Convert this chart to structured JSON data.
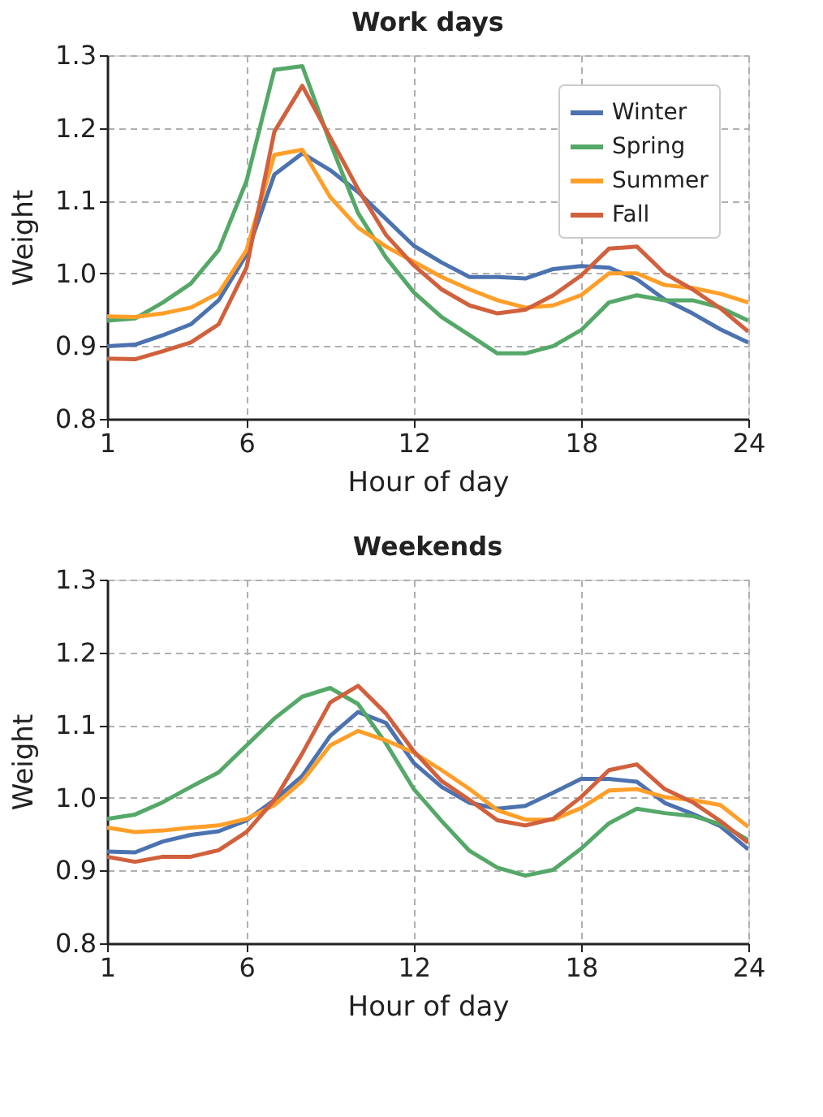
{
  "chart_data": [
    {
      "type": "line",
      "title": "Work days",
      "xlabel": "Hour of day",
      "ylabel": "Weight",
      "x": [
        1,
        2,
        3,
        4,
        5,
        6,
        7,
        8,
        9,
        10,
        11,
        12,
        13,
        14,
        15,
        16,
        17,
        18,
        19,
        20,
        21,
        22,
        23,
        24
      ],
      "xlim": [
        1,
        24
      ],
      "xticks": [
        1,
        6,
        12,
        18,
        24
      ],
      "ylim": [
        0.8,
        1.3
      ],
      "yticks": [
        0.8,
        0.9,
        {
          "value": 1.0,
          "label": "1.0"
        },
        1.1,
        1.2,
        1.3
      ],
      "grid": true,
      "legend": "top right",
      "series": [
        {
          "name": "Winter",
          "color": "#4c72b0",
          "values": [
            0.9,
            0.902,
            0.915,
            0.93,
            0.963,
            1.026,
            1.136,
            1.165,
            1.142,
            1.112,
            1.075,
            1.038,
            1.015,
            0.995,
            0.995,
            0.993,
            1.006,
            1.01,
            1.008,
            0.992,
            0.964,
            0.945,
            0.923,
            0.905
          ]
        },
        {
          "name": "Spring",
          "color": "#55a868",
          "values": [
            0.935,
            0.938,
            0.96,
            0.986,
            1.032,
            1.127,
            1.28,
            1.285,
            1.18,
            1.083,
            1.022,
            0.974,
            0.94,
            0.915,
            0.89,
            0.89,
            0.9,
            0.922,
            0.96,
            0.97,
            0.963,
            0.963,
            0.953,
            0.935
          ]
        },
        {
          "name": "Summer",
          "color": "#ff9f29",
          "values": [
            0.941,
            0.94,
            0.945,
            0.953,
            0.973,
            1.032,
            1.163,
            1.17,
            1.105,
            1.063,
            1.037,
            1.016,
            0.995,
            0.978,
            0.963,
            0.953,
            0.956,
            0.97,
            1.0,
            1.0,
            0.984,
            0.98,
            0.972,
            0.96
          ]
        },
        {
          "name": "Fall",
          "color": "#d1603d",
          "values": [
            0.883,
            0.882,
            0.893,
            0.905,
            0.93,
            1.008,
            1.195,
            1.258,
            1.187,
            1.116,
            1.053,
            1.011,
            0.978,
            0.956,
            0.945,
            0.95,
            0.97,
            0.997,
            1.034,
            1.037,
            1.0,
            0.978,
            0.952,
            0.92
          ]
        }
      ]
    },
    {
      "type": "line",
      "title": "Weekends",
      "xlabel": "Hour of day",
      "ylabel": "Weight",
      "x": [
        1,
        2,
        3,
        4,
        5,
        6,
        7,
        8,
        9,
        10,
        11,
        12,
        13,
        14,
        15,
        16,
        17,
        18,
        19,
        20,
        21,
        22,
        23,
        24
      ],
      "xlim": [
        1,
        24
      ],
      "xticks": [
        1,
        6,
        12,
        18,
        24
      ],
      "ylim": [
        0.8,
        1.3
      ],
      "yticks": [
        0.8,
        0.9,
        {
          "value": 1.0,
          "label": "1.0"
        },
        1.1,
        1.2,
        1.3
      ],
      "grid": true,
      "series": [
        {
          "color": "#4c72b0",
          "values": [
            0.926,
            0.925,
            0.94,
            0.949,
            0.954,
            0.969,
            0.997,
            1.03,
            1.085,
            1.118,
            1.103,
            1.048,
            1.015,
            0.993,
            0.985,
            0.989,
            1.007,
            1.026,
            1.026,
            1.022,
            0.993,
            0.978,
            0.961,
            0.929
          ]
        },
        {
          "color": "#55a868",
          "values": [
            0.971,
            0.977,
            0.994,
            1.015,
            1.035,
            1.072,
            1.109,
            1.139,
            1.151,
            1.129,
            1.075,
            1.012,
            0.968,
            0.927,
            0.904,
            0.893,
            0.901,
            0.93,
            0.965,
            0.985,
            0.979,
            0.975,
            0.964,
            0.942
          ]
        },
        {
          "color": "#ff9f29",
          "values": [
            0.959,
            0.953,
            0.955,
            0.959,
            0.962,
            0.971,
            0.99,
            1.023,
            1.072,
            1.092,
            1.079,
            1.062,
            1.038,
            1.012,
            0.983,
            0.97,
            0.97,
            0.986,
            1.01,
            1.012,
            1.001,
            0.997,
            0.99,
            0.96
          ]
        },
        {
          "color": "#d1603d",
          "values": [
            0.919,
            0.912,
            0.919,
            0.919,
            0.928,
            0.953,
            0.997,
            1.061,
            1.131,
            1.154,
            1.116,
            1.064,
            1.023,
            0.997,
            0.969,
            0.962,
            0.971,
            1.001,
            1.038,
            1.046,
            1.012,
            0.994,
            0.968,
            0.938
          ]
        }
      ]
    }
  ]
}
